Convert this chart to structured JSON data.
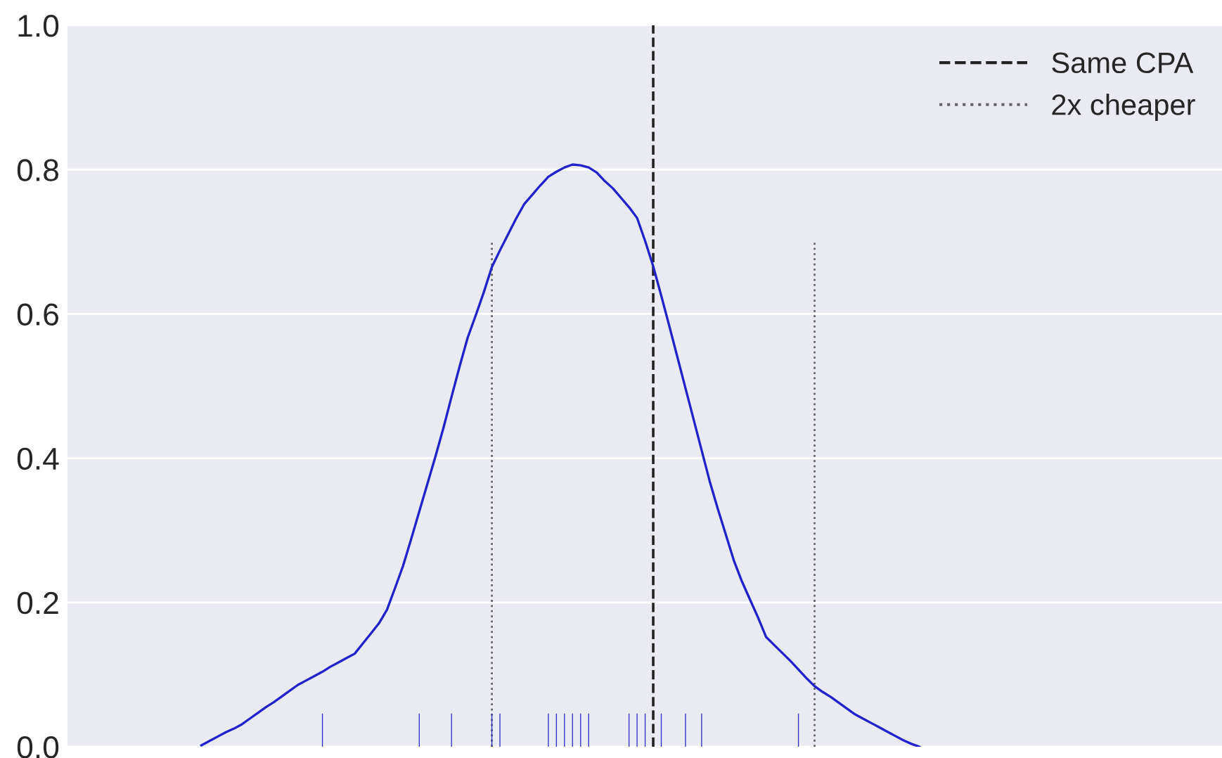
{
  "chart_data": {
    "type": "line",
    "categories": [
      null,
      null,
      null,
      null,
      null,
      null,
      null,
      null,
      null,
      null,
      null,
      null,
      null,
      null,
      null,
      null,
      null,
      null,
      null,
      null,
      null,
      null,
      null,
      null,
      null,
      null,
      null,
      null,
      null,
      null,
      null,
      null,
      null,
      null,
      null,
      null,
      null,
      null,
      null,
      null,
      null,
      null,
      null,
      null,
      null,
      null,
      null,
      null,
      null,
      null,
      null,
      null,
      null,
      null,
      null,
      null,
      null,
      null,
      null,
      null,
      null,
      null,
      null,
      null,
      null,
      null,
      null,
      null,
      null,
      null,
      null,
      null,
      null,
      null,
      null,
      null,
      null,
      null,
      null,
      null,
      null,
      null,
      null,
      null,
      null,
      null,
      null,
      null,
      null,
      null,
      null,
      null,
      null,
      null,
      null,
      null,
      null,
      null,
      null,
      null,
      null,
      null,
      null,
      null,
      null,
      null,
      null,
      null,
      null,
      null,
      null,
      null,
      null,
      null,
      null,
      null,
      null,
      null,
      null,
      null,
      null,
      null,
      null,
      null,
      null,
      null,
      null,
      null,
      null,
      null,
      null,
      null,
      null,
      null,
      null,
      null,
      null,
      null,
      null,
      null,
      null,
      null,
      null
    ],
    "ylim": [
      0,
      1.0
    ],
    "yticks": [
      {
        "value": 0,
        "label": "0.0"
      },
      0.2,
      0.4,
      0.6,
      0.8,
      {
        "value": 1,
        "label": "1.0"
      }
    ],
    "grid": "y",
    "legend": "top right",
    "series": [
      {
        "color": "#2222cc",
        "values": [
          null,
          null,
          null,
          null,
          null,
          null,
          null,
          null,
          null,
          null,
          null,
          null,
          null,
          null,
          null,
          null,
          0.002,
          0.008,
          0.014,
          0.02,
          0.025,
          0.031,
          0.039,
          0.047,
          0.055,
          0.062,
          0.07,
          0.078,
          0.086,
          0.092,
          0.098,
          0.104,
          0.111,
          0.117,
          0.123,
          0.129,
          0.143,
          0.157,
          0.171,
          0.19,
          0.22,
          0.251,
          0.288,
          0.326,
          0.364,
          0.402,
          0.442,
          0.485,
          0.527,
          0.567,
          0.598,
          0.63,
          0.665,
          0.688,
          0.71,
          0.732,
          0.752,
          0.765,
          0.778,
          0.79,
          0.797,
          0.803,
          0.807,
          0.806,
          0.803,
          0.796,
          0.784,
          0.774,
          0.761,
          0.748,
          0.733,
          0.701,
          0.666,
          0.625,
          0.583,
          0.54,
          0.497,
          0.454,
          0.411,
          0.368,
          0.33,
          0.294,
          0.258,
          0.229,
          0.204,
          0.179,
          0.152,
          0.141,
          0.13,
          0.119,
          0.107,
          0.095,
          0.084,
          0.076,
          0.069,
          0.061,
          0.053,
          0.045,
          0.039,
          0.033,
          0.027,
          0.021,
          0.015,
          0.009,
          0.004,
          0.0,
          null,
          null,
          null,
          null,
          null,
          null,
          null,
          null,
          null,
          null,
          null,
          null,
          null,
          null,
          null,
          null,
          null,
          null,
          null,
          null,
          null,
          null,
          null,
          null,
          null,
          null,
          null,
          null,
          null,
          null,
          null,
          null,
          null,
          null,
          null,
          null,
          null
        ]
      },
      {
        "type": "bar",
        "color": "#3333cc",
        "values": [
          null,
          null,
          null,
          null,
          null,
          null,
          null,
          null,
          null,
          null,
          null,
          null,
          null,
          null,
          null,
          null,
          null,
          null,
          null,
          null,
          null,
          null,
          null,
          null,
          null,
          null,
          null,
          null,
          null,
          null,
          null,
          0.046,
          null,
          null,
          null,
          null,
          null,
          null,
          null,
          null,
          null,
          null,
          null,
          0.046,
          null,
          null,
          null,
          0.046,
          null,
          null,
          null,
          null,
          0.046,
          0.046,
          null,
          null,
          null,
          null,
          null,
          0.046,
          0.046,
          0.046,
          0.046,
          0.046,
          0.046,
          null,
          null,
          null,
          null,
          0.046,
          0.046,
          0.046,
          null,
          0.046,
          null,
          null,
          0.046,
          null,
          0.046,
          null,
          null,
          null,
          null,
          null,
          null,
          null,
          null,
          null,
          null,
          null,
          0.046,
          null,
          null,
          null,
          null,
          null,
          null,
          null,
          null,
          null,
          null,
          null,
          null,
          null,
          null,
          null,
          null,
          null,
          null,
          null,
          null,
          null,
          null,
          null,
          null,
          null,
          null,
          null,
          null,
          null,
          null,
          null,
          null,
          null,
          null,
          null,
          null,
          null,
          null,
          null,
          null,
          null,
          null,
          null,
          null,
          null,
          null,
          null,
          null,
          null,
          null,
          null,
          null
        ]
      },
      {
        "type": "bar",
        "name": "Same CPA",
        "color": "#222222",
        "line_style": "dashed",
        "values": [
          null,
          null,
          null,
          null,
          null,
          null,
          null,
          null,
          null,
          null,
          null,
          null,
          null,
          null,
          null,
          null,
          null,
          null,
          null,
          null,
          null,
          null,
          null,
          null,
          null,
          null,
          null,
          null,
          null,
          null,
          null,
          null,
          null,
          null,
          null,
          null,
          null,
          null,
          null,
          null,
          null,
          null,
          null,
          null,
          null,
          null,
          null,
          null,
          null,
          null,
          null,
          null,
          null,
          null,
          null,
          null,
          null,
          null,
          null,
          null,
          null,
          null,
          null,
          null,
          null,
          null,
          null,
          null,
          null,
          null,
          null,
          null,
          1.0,
          null,
          null,
          null,
          null,
          null,
          null,
          null,
          null,
          null,
          null,
          null,
          null,
          null,
          null,
          null,
          null,
          null,
          null,
          null,
          null,
          null,
          null,
          null,
          null,
          null,
          null,
          null,
          null,
          null,
          null,
          null,
          null,
          null,
          null,
          null,
          null,
          null,
          null,
          null,
          null,
          null,
          null,
          null,
          null,
          null,
          null,
          null,
          null,
          null,
          null,
          null,
          null,
          null,
          null,
          null,
          null,
          null,
          null,
          null,
          null,
          null,
          null,
          null,
          null,
          null,
          null,
          null,
          null,
          null,
          null
        ]
      },
      {
        "type": "bar",
        "name": "2x cheaper",
        "color": "#666666",
        "line_style": "dotted",
        "values": [
          null,
          null,
          null,
          null,
          null,
          null,
          null,
          null,
          null,
          null,
          null,
          null,
          null,
          null,
          null,
          null,
          null,
          null,
          null,
          null,
          null,
          null,
          null,
          null,
          null,
          null,
          null,
          null,
          null,
          null,
          null,
          null,
          null,
          null,
          null,
          null,
          null,
          null,
          null,
          null,
          null,
          null,
          null,
          null,
          null,
          null,
          null,
          null,
          null,
          null,
          null,
          null,
          0.7,
          null,
          null,
          null,
          null,
          null,
          null,
          null,
          null,
          null,
          null,
          null,
          null,
          null,
          null,
          null,
          null,
          null,
          null,
          null,
          null,
          null,
          null,
          null,
          null,
          null,
          null,
          null,
          null,
          null,
          null,
          null,
          null,
          null,
          null,
          null,
          null,
          null,
          null,
          null,
          0.7,
          null,
          null,
          null,
          null,
          null,
          null,
          null,
          null,
          null,
          null,
          null,
          null,
          null,
          null,
          null,
          null,
          null,
          null,
          null,
          null,
          null,
          null,
          null,
          null,
          null,
          null,
          null,
          null,
          null,
          null,
          null,
          null,
          null,
          null,
          null,
          null,
          null,
          null,
          null,
          null,
          null,
          null,
          null,
          null,
          null,
          null,
          null,
          null,
          null,
          null
        ]
      }
    ]
  }
}
